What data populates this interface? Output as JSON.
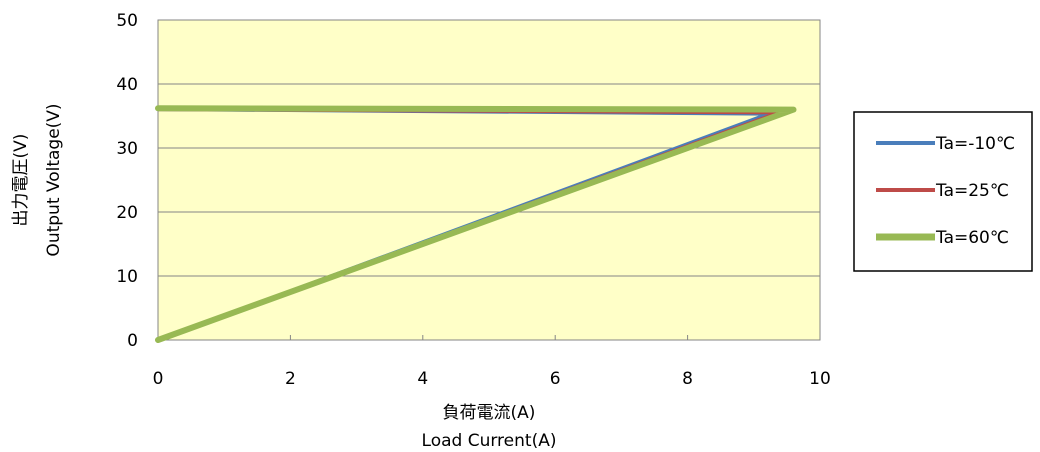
{
  "chart_data": {
    "type": "line",
    "xlabel_lines": [
      "負荷電流(A)",
      "Load Current(A)"
    ],
    "ylabel_lines": [
      "出力電圧(V)",
      "Output  Voltage(V)"
    ],
    "xlim": [
      0,
      10
    ],
    "ylim": [
      0,
      50
    ],
    "xticks": [
      "0",
      "2",
      "4",
      "6",
      "8",
      "10"
    ],
    "yticks": [
      "0",
      "10",
      "20",
      "30",
      "40",
      "50"
    ],
    "grid": "horizontal",
    "legend_position": "right",
    "plot_background": "#ffffc8",
    "series": [
      {
        "name": "Ta=-10℃",
        "color": "#4a7ebb",
        "x": [
          0,
          9.2,
          9.2,
          0
        ],
        "y": [
          36,
          35.3,
          35.3,
          0
        ]
      },
      {
        "name": "Ta=25℃",
        "color": "#be4b48",
        "x": [
          0,
          9.35,
          9.35,
          0
        ],
        "y": [
          36,
          35.5,
          35.5,
          0
        ]
      },
      {
        "name": "Ta=60℃",
        "color": "#98b954",
        "x": [
          0,
          9.6,
          9.6,
          0
        ],
        "y": [
          36.2,
          36,
          36,
          0
        ]
      }
    ]
  }
}
